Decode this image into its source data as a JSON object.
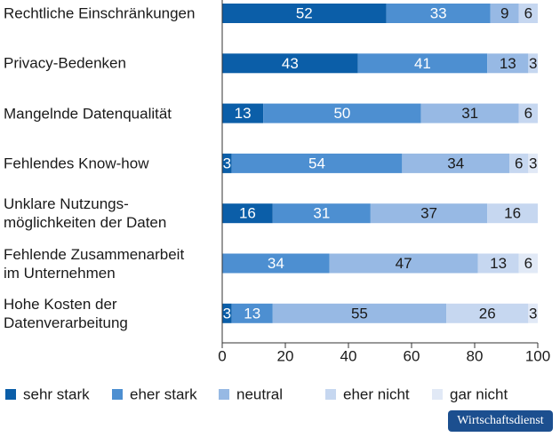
{
  "chart_data": {
    "type": "stacked-barh",
    "categories": [
      "Rechtliche Einschränkungen",
      "Privacy-Bedenken",
      "Mangelnde Datenqualität",
      "Fehlendes Know-how",
      "Unklare Nutzungs-\nmöglichkeiten der Daten",
      "Fehlende Zusammenarbeit\nim Unternehmen",
      "Hohe Kosten der\nDatenverarbeitung"
    ],
    "series": [
      {
        "name": "sehr stark",
        "color": "#0b5ea8",
        "label_color": "#ffffff",
        "values": [
          52,
          43,
          13,
          3,
          16,
          null,
          3
        ]
      },
      {
        "name": "eher stark",
        "color": "#4d8fd1",
        "label_color": "#ffffff",
        "values": [
          33,
          41,
          50,
          54,
          31,
          34,
          13
        ]
      },
      {
        "name": "neutral",
        "color": "#97b9e4",
        "label_color": "#1a1a1a",
        "values": [
          9,
          13,
          31,
          34,
          37,
          47,
          55
        ]
      },
      {
        "name": "eher nicht",
        "color": "#c6d7f0",
        "label_color": "#1a1a1a",
        "values": [
          6,
          3,
          6,
          6,
          16,
          13,
          26
        ]
      },
      {
        "name": "gar nicht",
        "color": "#e1e9f6",
        "label_color": "#1a1a1a",
        "values": [
          null,
          null,
          null,
          3,
          null,
          6,
          3
        ]
      }
    ],
    "xlim": [
      0,
      100
    ],
    "xticks": [
      0,
      20,
      40,
      60,
      80,
      100
    ]
  },
  "source": "Wirtschaftsdienst"
}
